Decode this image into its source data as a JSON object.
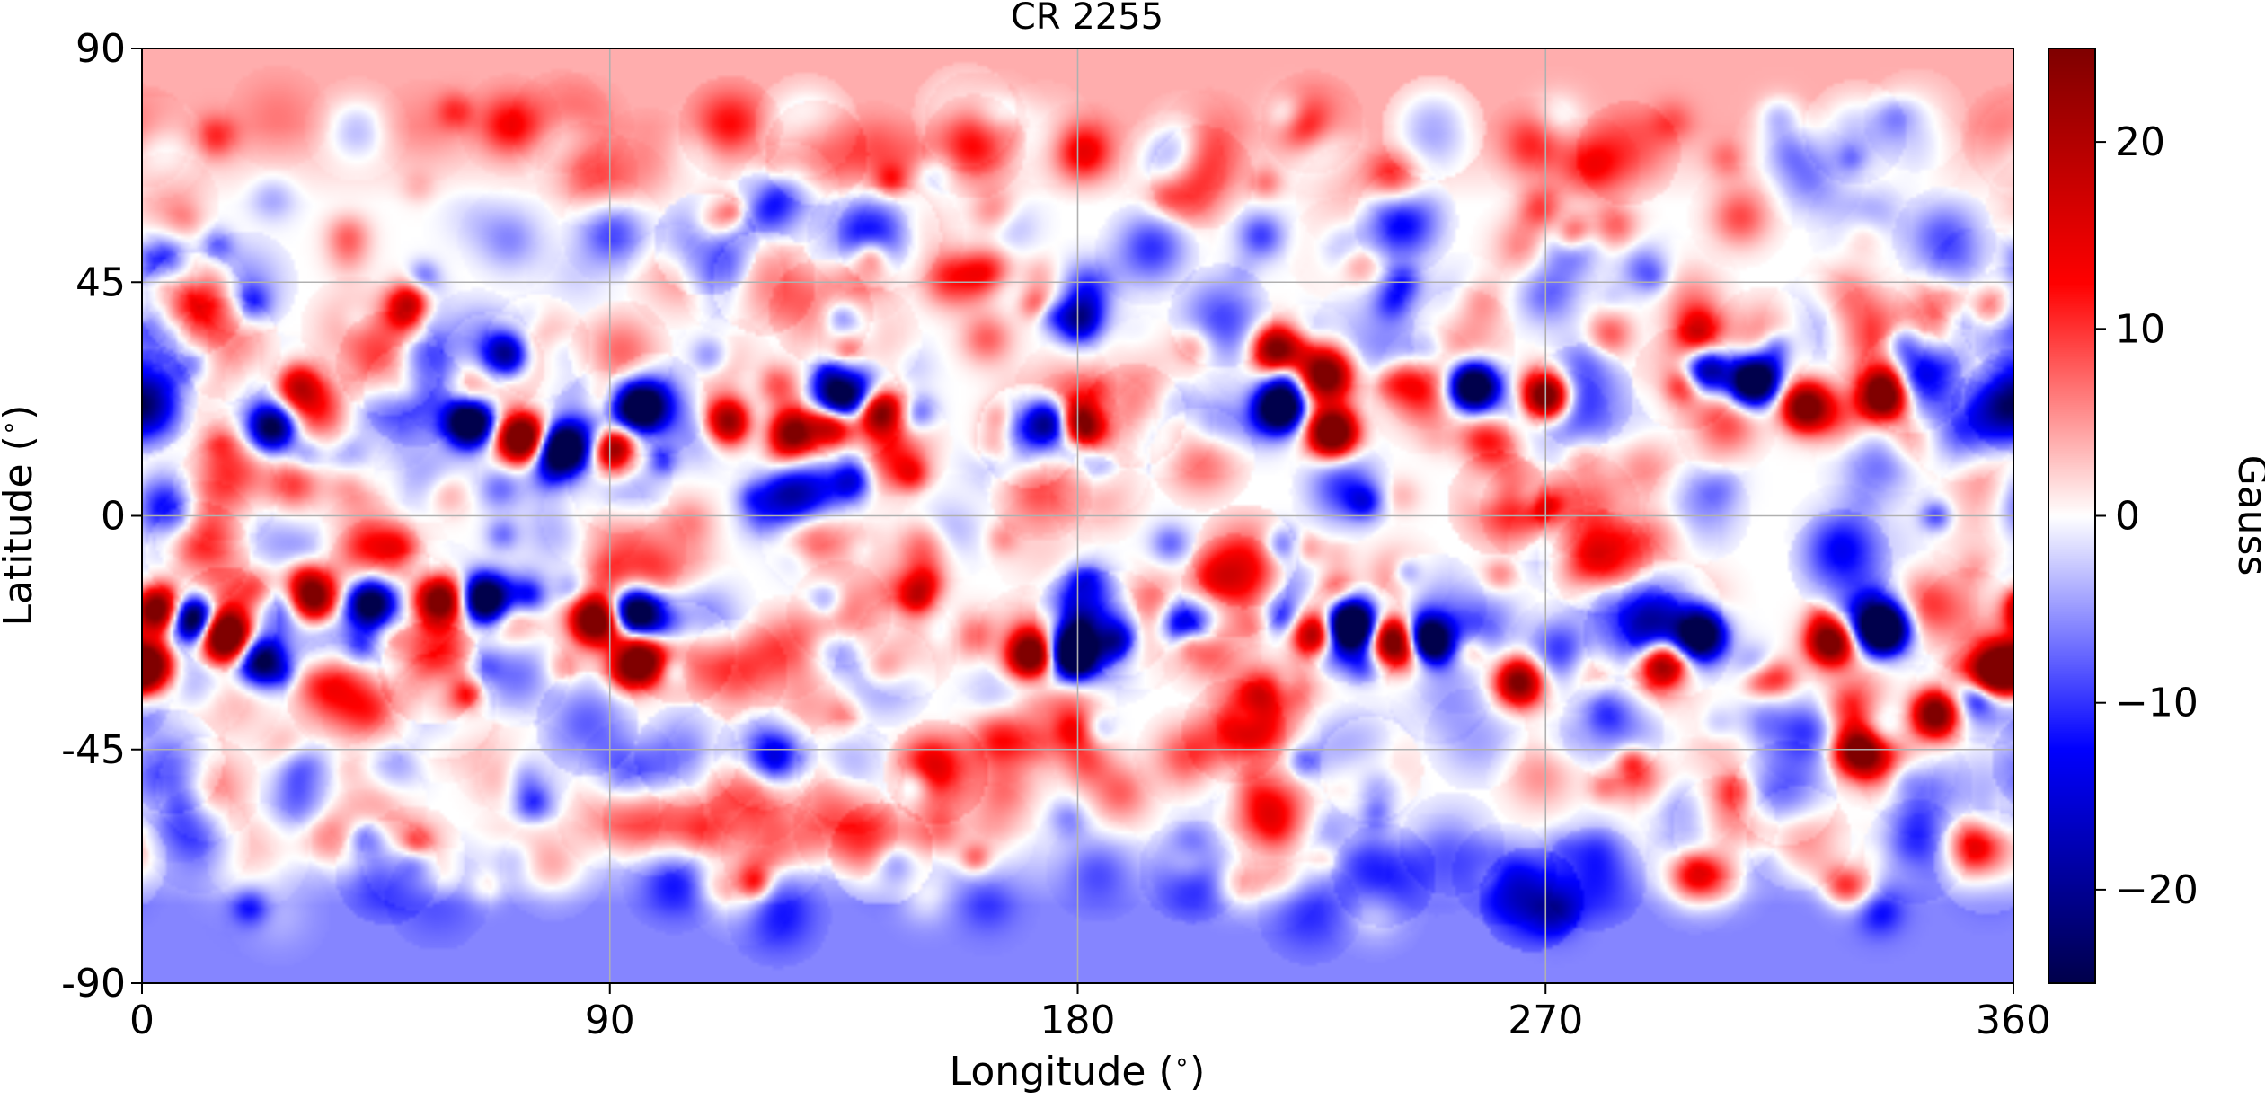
{
  "chart_data": {
    "type": "heatmap",
    "title": "CR 2255",
    "xlabel": "Longitude ($^\\circ$)",
    "ylabel": "Latitude ($^\\circ$)",
    "xlim": [
      0,
      360
    ],
    "ylim": [
      -90,
      90
    ],
    "xticks": [
      0,
      90,
      180,
      270,
      360
    ],
    "xtick_labels": [
      "0",
      "90",
      "180",
      "270",
      "360"
    ],
    "yticks": [
      90,
      45,
      0,
      -45,
      -90
    ],
    "ytick_labels": [
      "90",
      "45",
      "0",
      "-45",
      "-90"
    ],
    "grid": true,
    "colorbar": {
      "label": "Gauss",
      "range": [
        -25,
        25
      ],
      "ticks": [
        20,
        10,
        0,
        -10,
        -20
      ],
      "tick_labels": [
        "20",
        "10",
        "0",
        "−10",
        "−20"
      ],
      "colormap": "seismic",
      "colors": [
        "#00004c",
        "#0000ff",
        "#ffffff",
        "#ff0000",
        "#800000"
      ]
    },
    "polar_field": {
      "north": 4,
      "south": -6
    },
    "active_regions": [
      {
        "lon": 63,
        "lat": 18,
        "value": -25
      },
      {
        "lon": 73,
        "lat": 15,
        "value": 25
      },
      {
        "lon": 81,
        "lat": 13,
        "value": -25
      },
      {
        "lon": 91,
        "lat": 13,
        "value": 25
      },
      {
        "lon": 96,
        "lat": 21,
        "value": -20
      },
      {
        "lon": 70,
        "lat": 31,
        "value": -18
      },
      {
        "lon": 52,
        "lat": 40,
        "value": 18
      },
      {
        "lon": 25,
        "lat": 17,
        "value": -18
      },
      {
        "lon": 30,
        "lat": 25,
        "value": 12
      },
      {
        "lon": 113,
        "lat": 18,
        "value": 20
      },
      {
        "lon": 125,
        "lat": 16,
        "value": 18
      },
      {
        "lon": 133,
        "lat": 18,
        "value": 20
      },
      {
        "lon": 142,
        "lat": 20,
        "value": 20
      },
      {
        "lon": 134,
        "lat": 22,
        "value": -20
      },
      {
        "lon": 175,
        "lat": 18,
        "value": -16
      },
      {
        "lon": 181,
        "lat": 18,
        "value": 20
      },
      {
        "lon": 180,
        "lat": 38,
        "value": -15
      },
      {
        "lon": 218,
        "lat": 32,
        "value": 18
      },
      {
        "lon": 228,
        "lat": 27,
        "value": 16
      },
      {
        "lon": 219,
        "lat": 21,
        "value": -25
      },
      {
        "lon": 229,
        "lat": 16,
        "value": 25
      },
      {
        "lon": 256,
        "lat": 25,
        "value": -25
      },
      {
        "lon": 270,
        "lat": 23,
        "value": 25
      },
      {
        "lon": 310,
        "lat": 26,
        "value": -25
      },
      {
        "lon": 301,
        "lat": 28,
        "value": -16
      },
      {
        "lon": 320,
        "lat": 21,
        "value": 20
      },
      {
        "lon": 335,
        "lat": 23,
        "value": 25
      },
      {
        "lon": 3,
        "lat": -18,
        "value": 25
      },
      {
        "lon": 10,
        "lat": -20,
        "value": -25
      },
      {
        "lon": 16,
        "lat": -23,
        "value": 25
      },
      {
        "lon": 1,
        "lat": -29,
        "value": 22
      },
      {
        "lon": 23,
        "lat": -28,
        "value": -18
      },
      {
        "lon": 33,
        "lat": -16,
        "value": 20
      },
      {
        "lon": 44,
        "lat": -17,
        "value": -22
      },
      {
        "lon": 57,
        "lat": -16,
        "value": 18
      },
      {
        "lon": 66,
        "lat": -16,
        "value": -25
      },
      {
        "lon": 87,
        "lat": -20,
        "value": 22
      },
      {
        "lon": 95,
        "lat": -19,
        "value": -25
      },
      {
        "lon": 96,
        "lat": -28,
        "value": 18
      },
      {
        "lon": 171,
        "lat": -27,
        "value": 22
      },
      {
        "lon": 179,
        "lat": -27,
        "value": -25
      },
      {
        "lon": 201,
        "lat": -21,
        "value": -16
      },
      {
        "lon": 226,
        "lat": -23,
        "value": 20
      },
      {
        "lon": 232,
        "lat": -21,
        "value": -22
      },
      {
        "lon": 241,
        "lat": -24,
        "value": 25
      },
      {
        "lon": 247,
        "lat": -24,
        "value": -25
      },
      {
        "lon": 265,
        "lat": -32,
        "value": 18
      },
      {
        "lon": 300,
        "lat": -23,
        "value": -20
      },
      {
        "lon": 293,
        "lat": -28,
        "value": 16
      },
      {
        "lon": 325,
        "lat": -24,
        "value": 25
      },
      {
        "lon": 335,
        "lat": -22,
        "value": -25
      },
      {
        "lon": 345,
        "lat": -38,
        "value": 22
      },
      {
        "lon": 356,
        "lat": -30,
        "value": 22
      },
      {
        "lon": 330,
        "lat": -45,
        "value": 18
      }
    ]
  }
}
